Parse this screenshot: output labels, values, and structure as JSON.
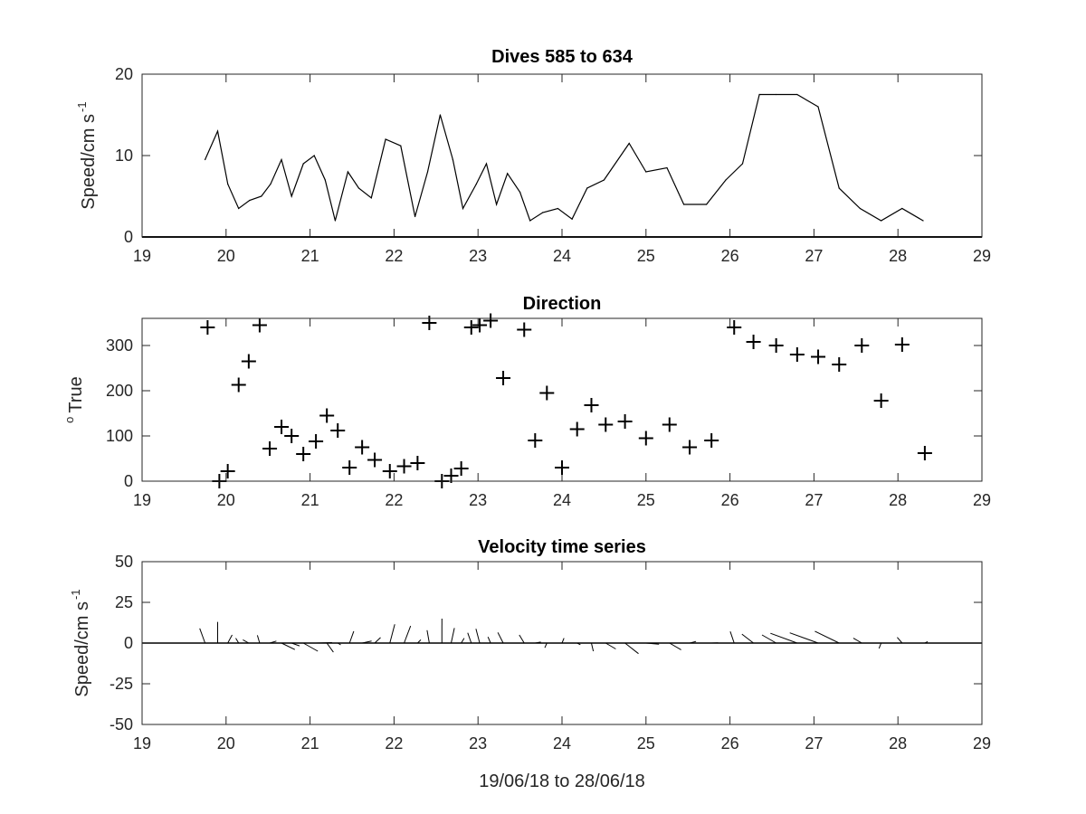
{
  "chart_data": [
    {
      "type": "line",
      "title": "Dives 585 to 634",
      "ylabel": "Speed/cm s",
      "ylabel_sup": "-1",
      "xlabel": "",
      "xlim": [
        19,
        29
      ],
      "ylim": [
        0,
        20
      ],
      "xticks": [
        "19",
        "20",
        "21",
        "22",
        "23",
        "24",
        "25",
        "26",
        "27",
        "28",
        "29"
      ],
      "yticks": [
        "0",
        "10",
        "20"
      ],
      "series": [
        {
          "x": [
            19.75,
            19.9,
            20.02,
            20.15,
            20.28,
            20.42,
            20.53,
            20.66,
            20.78,
            20.92,
            21.05,
            21.18,
            21.3,
            21.45,
            21.58,
            21.73,
            21.9,
            22.08,
            22.25,
            22.4,
            22.55,
            22.7,
            22.82,
            22.98,
            23.1,
            23.22,
            23.35,
            23.5,
            23.62,
            23.77,
            23.95,
            24.12,
            24.3,
            24.5,
            24.8,
            25.0,
            25.25,
            25.45,
            25.72,
            25.95,
            26.15,
            26.35,
            26.55,
            26.8,
            27.05,
            27.3,
            27.55,
            27.8,
            28.05,
            28.3
          ],
          "y": [
            9.5,
            13,
            6.5,
            3.5,
            4.5,
            5,
            6.5,
            9.5,
            5,
            9,
            10,
            7,
            2,
            8,
            6,
            4.8,
            12,
            11.2,
            2.5,
            8,
            15,
            9.5,
            3.5,
            6.5,
            9,
            4,
            7.8,
            5.5,
            2,
            3,
            3.5,
            2.2,
            6,
            7,
            11.5,
            8,
            8.5,
            4,
            4,
            7,
            9,
            17.5,
            17.5,
            17.5,
            16,
            6,
            3.5,
            2,
            3.5,
            2
          ]
        }
      ]
    },
    {
      "type": "scatter",
      "title": "Direction",
      "ylabel": "True",
      "ylabel_sup": "o",
      "xlabel": "",
      "xlim": [
        19,
        29
      ],
      "ylim": [
        0,
        360
      ],
      "xticks": [
        "19",
        "20",
        "21",
        "22",
        "23",
        "24",
        "25",
        "26",
        "27",
        "28",
        "29"
      ],
      "yticks": [
        "0",
        "100",
        "200",
        "300"
      ],
      "marker": "plus",
      "series": [
        {
          "x": [
            19.78,
            19.92,
            20.02,
            20.15,
            20.27,
            20.4,
            20.52,
            20.66,
            20.78,
            20.92,
            21.07,
            21.2,
            21.33,
            21.47,
            21.62,
            21.77,
            21.95,
            22.12,
            22.28,
            22.42,
            22.57,
            22.68,
            22.8,
            22.92,
            23.02,
            23.15,
            23.3,
            23.55,
            23.68,
            23.82,
            24.0,
            24.18,
            24.35,
            24.52,
            24.75,
            25.0,
            25.28,
            25.52,
            25.78,
            26.05,
            26.28,
            26.55,
            26.8,
            27.05,
            27.3,
            27.57,
            27.8,
            28.05,
            28.32
          ],
          "y": [
            340,
            0,
            22,
            213,
            265,
            345,
            72,
            120,
            100,
            60,
            88,
            145,
            112,
            30,
            75,
            47,
            22,
            33,
            40,
            350,
            0,
            12,
            28,
            340,
            345,
            355,
            228,
            335,
            90,
            195,
            30,
            115,
            168,
            125,
            132,
            95,
            125,
            75,
            90,
            340,
            308,
            300,
            280,
            275,
            258,
            300,
            178,
            302,
            62
          ]
        }
      ]
    },
    {
      "type": "line",
      "subtype": "stick",
      "title": "Velocity time series",
      "ylabel": "Speed/cm s",
      "ylabel_sup": "-1",
      "xlabel": "19/06/18 to 28/06/18",
      "xlim": [
        19,
        29
      ],
      "ylim": [
        -50,
        50
      ],
      "xticks": [
        "19",
        "20",
        "21",
        "22",
        "23",
        "24",
        "25",
        "26",
        "27",
        "28",
        "29"
      ],
      "yticks": [
        "-50",
        "-25",
        "0",
        "25",
        "50"
      ],
      "series": [
        {
          "x": [
            19.75,
            19.9,
            20.02,
            20.15,
            20.27,
            20.4,
            20.52,
            20.66,
            20.78,
            20.92,
            21.07,
            21.2,
            21.33,
            21.47,
            21.62,
            21.77,
            21.95,
            22.12,
            22.28,
            22.42,
            22.57,
            22.68,
            22.8,
            22.92,
            23.02,
            23.15,
            23.3,
            23.55,
            23.68,
            23.82,
            24.0,
            24.18,
            24.35,
            24.52,
            24.75,
            25.0,
            25.28,
            25.52,
            25.78,
            26.05,
            26.28,
            26.55,
            26.8,
            27.05,
            27.3,
            27.57,
            27.8,
            28.05,
            28.32
          ],
          "u": [
            -3.3,
            0,
            2.7,
            -1.8,
            -3.6,
            -1.4,
            4.1,
            8.2,
            4.9,
            8.9,
            9.9,
            4.0,
            1.8,
            2.6,
            5.8,
            3.6,
            3.0,
            4.0,
            2.0,
            -1.4,
            0,
            2.0,
            1.8,
            -2.2,
            -2.3,
            -1.6,
            -3.3,
            -3.0,
            3.5,
            -1.3,
            1.2,
            2.0,
            1.2,
            6.2,
            8.3,
            8.0,
            7.1,
            3.9,
            4.0,
            -2.4,
            -7.1,
            -8.7,
            -16.4,
            -17.4,
            -14.9,
            -5.2,
            -1.3,
            -3.0,
            1.8
          ],
          "v": [
            9.0,
            13.0,
            5.0,
            3.0,
            2.0,
            4.8,
            1.2,
            -4.0,
            -1.7,
            -5.0,
            0.3,
            -5.6,
            -1.1,
            7.3,
            1.2,
            3.4,
            11.5,
            10.5,
            2.0,
            7.9,
            15.0,
            9.2,
            3.0,
            6.3,
            8.7,
            3.8,
            6.5,
            5.0,
            0.6,
            -2.9,
            3.0,
            -1.0,
            -5.0,
            -3.6,
            -6.5,
            -0.7,
            -4.1,
            1.0,
            0.1,
            7.1,
            5.5,
            5.0,
            6.0,
            6.3,
            7.3,
            3.0,
            -3.3,
            3.5,
            0.9
          ]
        }
      ]
    }
  ]
}
